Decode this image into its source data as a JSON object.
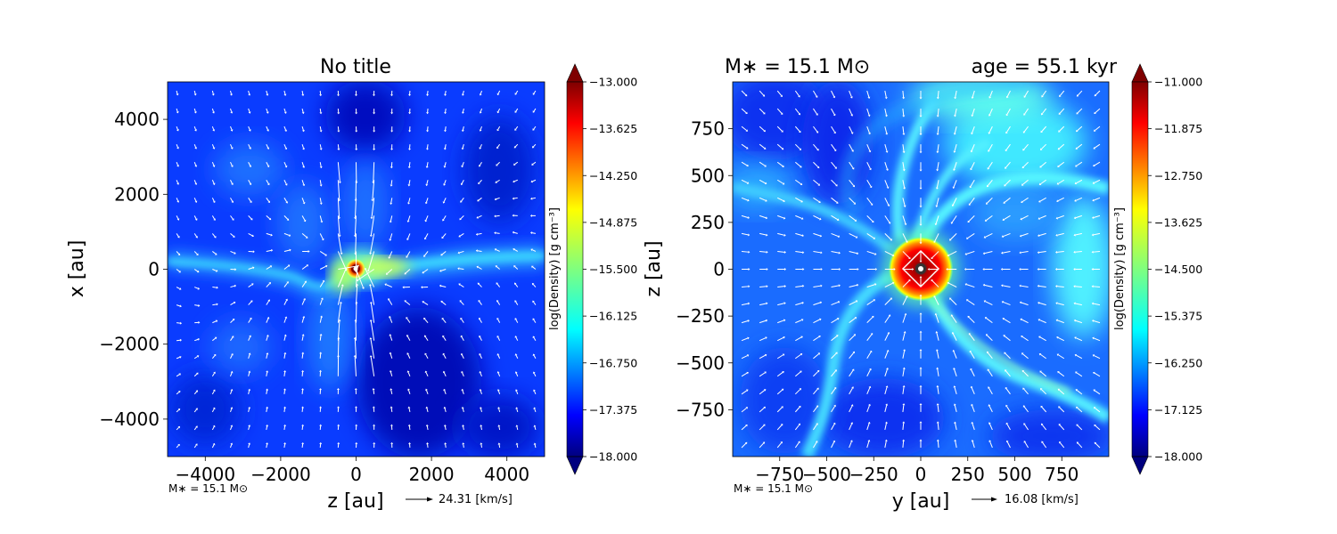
{
  "chart_data": [
    {
      "type": "heatmap",
      "title": "No title",
      "xlabel": "z [au]",
      "ylabel": "x [au]",
      "xlim": [
        -5000,
        5000
      ],
      "ylim": [
        -5000,
        5000
      ],
      "xticks": [
        -4000,
        -2000,
        0,
        2000,
        4000
      ],
      "yticks": [
        -4000,
        -2000,
        0,
        2000,
        4000
      ],
      "xtick_labels": [
        "−4000",
        "−2000",
        "0",
        "2000",
        "4000"
      ],
      "ytick_labels": [
        "−4000",
        "−2000",
        "0",
        "2000",
        "4000"
      ],
      "colorbar": {
        "label": "log(Density) [g cm⁻³]",
        "range": [
          -18.0,
          -13.0
        ],
        "ticks": [
          -13.0,
          -13.625,
          -14.25,
          -14.875,
          -15.5,
          -16.125,
          -16.75,
          -17.375,
          -18.0
        ],
        "tick_labels": [
          "−13.000",
          "−13.625",
          "−14.250",
          "−14.875",
          "−15.500",
          "−16.125",
          "−16.750",
          "−17.375",
          "−18.000"
        ]
      },
      "colormap": "jet",
      "stellar_mass_label": "M∗ = 15.1 M⊙",
      "velocity_key_label": "24.31 [km/s]",
      "features": {
        "background_log_density": -17.4,
        "filament": {
          "points": [
            [
              -5000,
              500
            ],
            [
              -3000,
              300
            ],
            [
              -1500,
              0
            ],
            [
              -800,
              -500
            ],
            [
              0,
              -150
            ],
            [
              2000,
              400
            ],
            [
              5000,
              600
            ]
          ],
          "log_density": -16.0
        },
        "core": {
          "center": [
            0,
            0
          ],
          "log_density": -13.0
        }
      }
    },
    {
      "type": "heatmap",
      "title": "M∗ = 15.1 M⊙",
      "title_right": "age = 55.1 kyr",
      "xlabel": "y [au]",
      "ylabel": "z [au]",
      "xlim": [
        -1000,
        1000
      ],
      "ylim": [
        -1000,
        1000
      ],
      "xticks": [
        -750,
        -500,
        -250,
        0,
        250,
        500,
        750
      ],
      "yticks": [
        -750,
        -500,
        -250,
        0,
        250,
        500,
        750
      ],
      "xtick_labels": [
        "−750",
        "−500",
        "−250",
        "0",
        "250",
        "500",
        "750"
      ],
      "ytick_labels": [
        "−750",
        "−500",
        "−250",
        "0",
        "250",
        "500",
        "750"
      ],
      "colorbar": {
        "label": "log(Density) [g cm⁻³]",
        "range": [
          -18.0,
          -11.0
        ],
        "ticks": [
          -11.0,
          -11.875,
          -12.75,
          -13.625,
          -14.5,
          -15.375,
          -16.25,
          -17.125,
          -18.0
        ],
        "tick_labels": [
          "−11.000",
          "−11.875",
          "−12.750",
          "−13.625",
          "−14.500",
          "−15.375",
          "−16.250",
          "−17.125",
          "−18.000"
        ]
      },
      "colormap": "jet",
      "stellar_mass_label": "M∗ = 15.1 M⊙",
      "velocity_key_label": "16.08 [km/s]",
      "features": {
        "background_log_density": -16.8,
        "core": {
          "center": [
            0,
            0
          ],
          "radius": 120,
          "log_density": -11.0
        }
      }
    }
  ]
}
